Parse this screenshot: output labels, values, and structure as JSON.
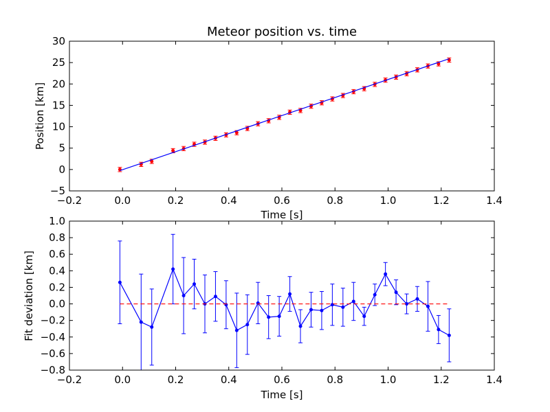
{
  "chart_data": [
    {
      "type": "scatter",
      "title": "Meteor position vs. time",
      "xlabel": "Time [s]",
      "ylabel": "Position [km]",
      "xlim": [
        -0.2,
        1.4
      ],
      "ylim": [
        -5,
        30
      ],
      "xticks": [
        -0.2,
        0.0,
        0.2,
        0.4,
        0.6,
        0.8,
        1.0,
        1.2,
        1.4
      ],
      "xtick_labels": [
        "−0.2",
        "0.0",
        "0.2",
        "0.4",
        "0.6",
        "0.8",
        "1.0",
        "1.2",
        "1.4"
      ],
      "yticks": [
        -5,
        0,
        5,
        10,
        15,
        20,
        25,
        30
      ],
      "ytick_labels": [
        "−5",
        "0",
        "5",
        "10",
        "15",
        "20",
        "25",
        "30"
      ],
      "grid": false,
      "series": [
        {
          "kind": "errorbar-points",
          "color": "#ff0000",
          "x": [
            -0.01,
            0.07,
            0.11,
            0.19,
            0.23,
            0.27,
            0.31,
            0.35,
            0.39,
            0.43,
            0.47,
            0.51,
            0.55,
            0.59,
            0.63,
            0.67,
            0.71,
            0.75,
            0.79,
            0.83,
            0.87,
            0.91,
            0.95,
            0.99,
            1.03,
            1.07,
            1.11,
            1.15,
            1.19,
            1.23
          ],
          "y": [
            0.0,
            1.2,
            1.9,
            4.4,
            4.9,
            5.9,
            6.4,
            7.3,
            8.1,
            8.6,
            9.6,
            10.7,
            11.4,
            12.2,
            13.4,
            13.8,
            14.8,
            15.6,
            16.5,
            17.3,
            18.2,
            18.9,
            19.9,
            20.9,
            21.6,
            22.4,
            23.3,
            24.2,
            24.7,
            25.6
          ],
          "yerr": 0.5
        },
        {
          "kind": "fit-line",
          "color": "#0000ff",
          "x": [
            -0.01,
            1.23
          ],
          "y": [
            -0.25,
            25.9
          ]
        }
      ]
    },
    {
      "type": "line",
      "title": "",
      "xlabel": "Time [s]",
      "ylabel": "Fit deviation [km]",
      "xlim": [
        -0.2,
        1.4
      ],
      "ylim": [
        -0.8,
        1.0
      ],
      "xticks": [
        -0.2,
        0.0,
        0.2,
        0.4,
        0.6,
        0.8,
        1.0,
        1.2,
        1.4
      ],
      "xtick_labels": [
        "−0.2",
        "0.0",
        "0.2",
        "0.4",
        "0.6",
        "0.8",
        "1.0",
        "1.2",
        "1.4"
      ],
      "yticks": [
        -0.8,
        -0.6,
        -0.4,
        -0.2,
        0.0,
        0.2,
        0.4,
        0.6,
        0.8,
        1.0
      ],
      "ytick_labels": [
        "−0.8",
        "−0.6",
        "−0.4",
        "−0.2",
        "0.0",
        "0.2",
        "0.4",
        "0.6",
        "0.8",
        "1.0"
      ],
      "grid": false,
      "series": [
        {
          "kind": "errorbar-line",
          "color": "#0000ff",
          "x": [
            -0.01,
            0.07,
            0.11,
            0.19,
            0.23,
            0.27,
            0.31,
            0.35,
            0.39,
            0.43,
            0.47,
            0.51,
            0.55,
            0.59,
            0.63,
            0.67,
            0.71,
            0.75,
            0.79,
            0.83,
            0.87,
            0.91,
            0.95,
            0.99,
            1.03,
            1.07,
            1.11,
            1.15,
            1.19,
            1.23
          ],
          "y": [
            0.26,
            -0.22,
            -0.28,
            0.42,
            0.1,
            0.24,
            0.0,
            0.09,
            -0.01,
            -0.32,
            -0.25,
            0.01,
            -0.16,
            -0.15,
            0.12,
            -0.27,
            -0.07,
            -0.08,
            -0.01,
            -0.04,
            0.03,
            -0.15,
            0.11,
            0.36,
            0.14,
            0.0,
            0.06,
            -0.03,
            -0.31,
            -0.38
          ],
          "yerr": [
            0.5,
            0.58,
            0.46,
            0.42,
            0.46,
            0.3,
            0.35,
            0.3,
            0.29,
            0.45,
            0.36,
            0.25,
            0.26,
            0.24,
            0.21,
            0.2,
            0.21,
            0.23,
            0.25,
            0.23,
            0.23,
            0.11,
            0.13,
            0.14,
            0.15,
            0.12,
            0.15,
            0.3,
            0.17,
            0.32
          ]
        },
        {
          "kind": "reference-line",
          "color": "#ff0000",
          "dashed": true,
          "x": [
            -0.01,
            1.23
          ],
          "y": [
            0.0,
            0.0
          ]
        }
      ]
    }
  ]
}
